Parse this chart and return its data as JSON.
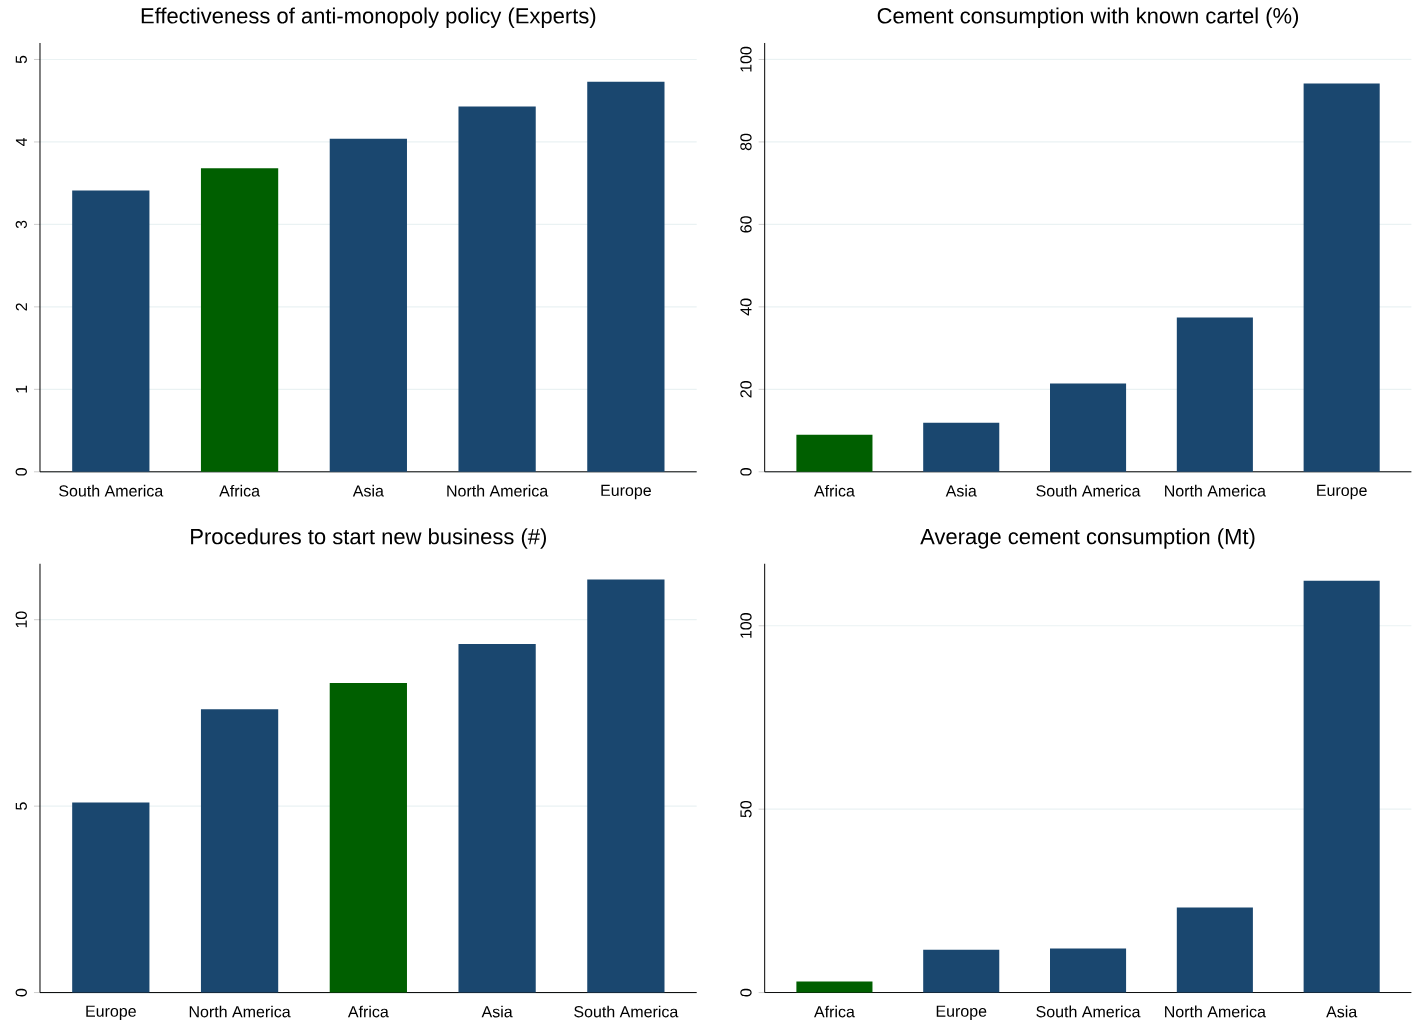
{
  "chart_data": [
    {
      "type": "bar",
      "title": "Effectiveness of anti-monopoly policy (Experts)",
      "categories": [
        "South America",
        "Africa",
        "Asia",
        "North America",
        "Europe"
      ],
      "values": [
        3.41,
        3.68,
        4.04,
        4.43,
        4.73
      ],
      "colors": [
        "#1a476f",
        "#005f00",
        "#1a476f",
        "#1a476f",
        "#1a476f"
      ],
      "ylim": [
        0,
        5.2
      ],
      "yticks": [
        0,
        1,
        2,
        3,
        4,
        5
      ],
      "grid": "y"
    },
    {
      "type": "bar",
      "title": "Cement consumption with known cartel (%)",
      "categories": [
        "Africa",
        "Asia",
        "South America",
        "North America",
        "Europe"
      ],
      "values": [
        9.0,
        11.9,
        21.4,
        37.4,
        94.2
      ],
      "colors": [
        "#005f00",
        "#1a476f",
        "#1a476f",
        "#1a476f",
        "#1a476f"
      ],
      "ylim": [
        0,
        104
      ],
      "yticks": [
        0,
        20,
        40,
        60,
        80,
        100
      ],
      "grid": "y"
    },
    {
      "type": "bar",
      "title": "Procedures to start new business (#)",
      "categories": [
        "Europe",
        "North America",
        "Africa",
        "Asia",
        "South America"
      ],
      "values": [
        5.1,
        7.6,
        8.3,
        9.35,
        11.08
      ],
      "colors": [
        "#1a476f",
        "#1a476f",
        "#005f00",
        "#1a476f",
        "#1a476f"
      ],
      "ylim": [
        0,
        11.5
      ],
      "yticks": [
        0,
        5,
        10
      ],
      "grid": "y"
    },
    {
      "type": "bar",
      "title": "Average cement consumption (Mt)",
      "categories": [
        "Africa",
        "Europe",
        "South America",
        "North America",
        "Asia"
      ],
      "values": [
        3.0,
        11.7,
        12.0,
        23.2,
        112.3
      ],
      "colors": [
        "#005f00",
        "#1a476f",
        "#1a476f",
        "#1a476f",
        "#1a476f"
      ],
      "ylim": [
        0,
        116.9
      ],
      "yticks": [
        0,
        50,
        100
      ],
      "grid": "y"
    }
  ]
}
